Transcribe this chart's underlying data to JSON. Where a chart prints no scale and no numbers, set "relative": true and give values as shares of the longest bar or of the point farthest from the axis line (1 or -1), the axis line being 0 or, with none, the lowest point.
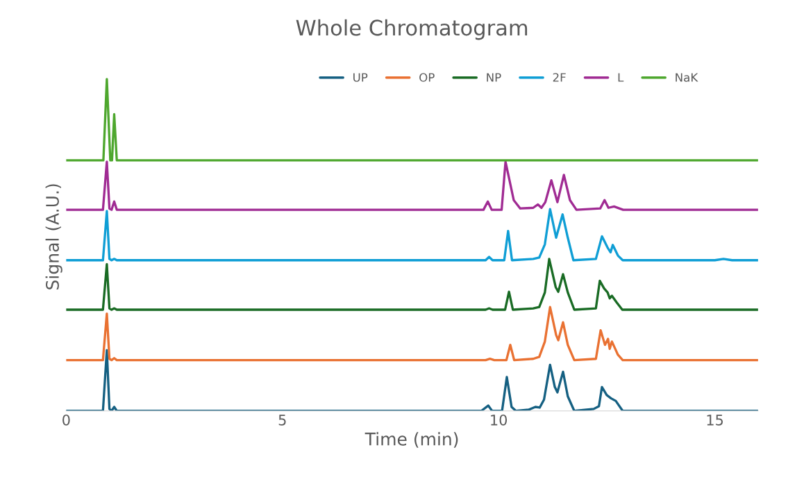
{
  "chart_data": {
    "type": "line",
    "title": "Whole Chromatogram",
    "xlabel": "Time (min)",
    "ylabel": "Signal (A.U.)",
    "relative": true,
    "xlim": [
      0,
      16
    ],
    "xticks": [
      0,
      5,
      10,
      15
    ],
    "grid": false,
    "legend": "top",
    "marker": "none",
    "line_style": "solid",
    "series": [
      {
        "name": "UP",
        "color": "#156082",
        "x": [
          0,
          0.85,
          0.94,
          1.0,
          1.05,
          1.11,
          1.17,
          9.6,
          9.76,
          9.85,
          10.08,
          10.19,
          10.3,
          10.4,
          10.7,
          10.85,
          10.95,
          11.05,
          11.19,
          11.3,
          11.36,
          11.49,
          11.6,
          11.75,
          12.2,
          12.32,
          12.39,
          12.5,
          12.6,
          12.71,
          12.87,
          16
        ],
        "values": [
          0,
          0,
          0.183,
          0.006,
          0,
          0.012,
          0,
          0,
          0.016,
          0,
          0,
          0.102,
          0.012,
          0,
          0.004,
          0.012,
          0.01,
          0.034,
          0.139,
          0.072,
          0.056,
          0.118,
          0.044,
          0,
          0.006,
          0.014,
          0.072,
          0.048,
          0.038,
          0.03,
          0,
          0
        ]
      },
      {
        "name": "OP",
        "color": "#e97132",
        "x": [
          0,
          0.85,
          0.94,
          1.0,
          1.05,
          1.11,
          1.17,
          9.7,
          9.8,
          9.9,
          10.18,
          10.27,
          10.36,
          10.8,
          10.94,
          11.07,
          11.19,
          11.33,
          11.38,
          11.49,
          11.6,
          11.75,
          12.25,
          12.36,
          12.46,
          12.53,
          12.57,
          12.62,
          12.76,
          12.87,
          16
        ],
        "values": [
          0.153,
          0.153,
          0.293,
          0.157,
          0.153,
          0.159,
          0.153,
          0.153,
          0.157,
          0.153,
          0.153,
          0.199,
          0.153,
          0.157,
          0.163,
          0.209,
          0.313,
          0.229,
          0.213,
          0.267,
          0.199,
          0.153,
          0.157,
          0.243,
          0.199,
          0.217,
          0.187,
          0.209,
          0.169,
          0.153,
          0.153
        ]
      },
      {
        "name": "NP",
        "color": "#196b24",
        "x": [
          0,
          0.85,
          0.94,
          1.0,
          1.05,
          1.11,
          1.17,
          9.7,
          9.78,
          9.86,
          10.15,
          10.24,
          10.33,
          10.8,
          10.94,
          11.07,
          11.17,
          11.32,
          11.38,
          11.49,
          11.6,
          11.75,
          12.25,
          12.34,
          12.44,
          12.52,
          12.57,
          12.62,
          12.73,
          12.86,
          16
        ],
        "values": [
          0.305,
          0.305,
          0.442,
          0.309,
          0.305,
          0.309,
          0.305,
          0.305,
          0.309,
          0.305,
          0.305,
          0.359,
          0.305,
          0.309,
          0.313,
          0.357,
          0.458,
          0.373,
          0.359,
          0.412,
          0.357,
          0.305,
          0.309,
          0.392,
          0.369,
          0.357,
          0.339,
          0.347,
          0.327,
          0.305,
          0.305
        ]
      },
      {
        "name": "2F",
        "color": "#0f9ed5",
        "x": [
          0,
          0.85,
          0.94,
          1.0,
          1.05,
          1.11,
          1.17,
          9.7,
          9.78,
          9.86,
          10.13,
          10.22,
          10.31,
          10.8,
          10.94,
          11.07,
          11.19,
          11.33,
          11.48,
          11.6,
          11.73,
          12.25,
          12.39,
          12.52,
          12.59,
          12.64,
          12.76,
          12.87,
          15.0,
          15.2,
          15.4,
          16
        ],
        "values": [
          0.454,
          0.454,
          0.602,
          0.458,
          0.454,
          0.458,
          0.454,
          0.454,
          0.464,
          0.454,
          0.454,
          0.542,
          0.454,
          0.458,
          0.462,
          0.502,
          0.608,
          0.522,
          0.592,
          0.522,
          0.454,
          0.458,
          0.526,
          0.492,
          0.478,
          0.5,
          0.468,
          0.454,
          0.454,
          0.458,
          0.454,
          0.454
        ]
      },
      {
        "name": "L",
        "color": "#a02b93",
        "x": [
          0,
          0.85,
          0.94,
          1.0,
          1.05,
          1.11,
          1.17,
          9.65,
          9.75,
          9.84,
          10.07,
          10.16,
          10.35,
          10.5,
          10.8,
          10.91,
          10.99,
          11.08,
          11.22,
          11.36,
          11.51,
          11.65,
          11.8,
          12.35,
          12.45,
          12.54,
          12.67,
          12.88,
          16
        ],
        "values": [
          0.606,
          0.606,
          0.751,
          0.61,
          0.606,
          0.631,
          0.606,
          0.606,
          0.631,
          0.606,
          0.606,
          0.751,
          0.635,
          0.61,
          0.612,
          0.622,
          0.612,
          0.629,
          0.695,
          0.629,
          0.711,
          0.635,
          0.606,
          0.61,
          0.635,
          0.612,
          0.616,
          0.606,
          0.606
        ]
      },
      {
        "name": "NaK",
        "color": "#4ea72e",
        "x": [
          0,
          0.86,
          0.94,
          1.02,
          1.06,
          1.11,
          1.17,
          16
        ],
        "values": [
          0.755,
          0.755,
          1.0,
          0.755,
          0.755,
          0.894,
          0.755,
          0.755
        ]
      }
    ]
  }
}
